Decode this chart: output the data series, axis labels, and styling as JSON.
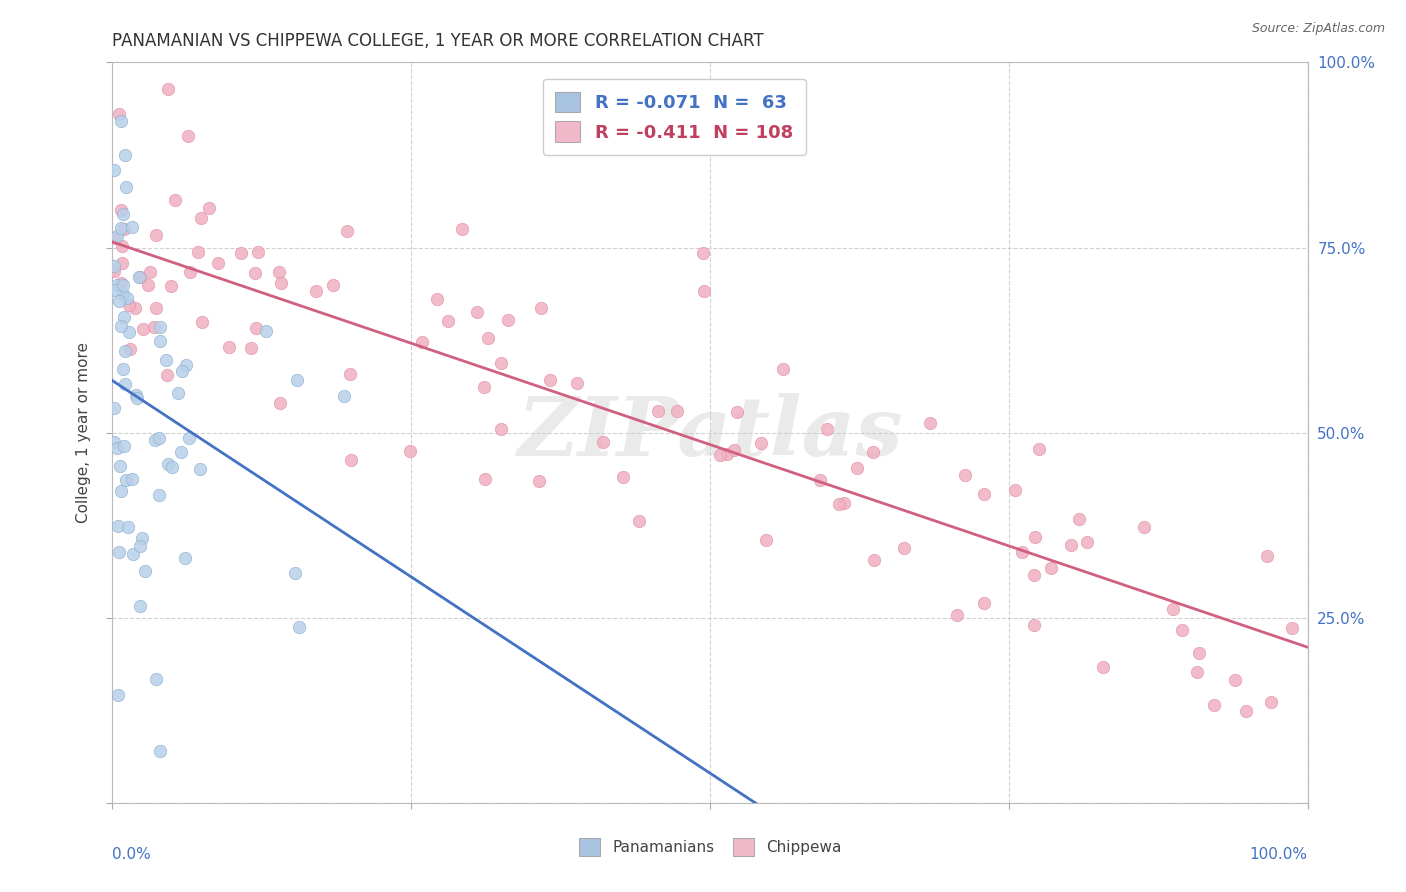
{
  "title": "PANAMANIAN VS CHIPPEWA COLLEGE, 1 YEAR OR MORE CORRELATION CHART",
  "source_text": "Source: ZipAtlas.com",
  "ylabel": "College, 1 year or more",
  "ylabel_right_ticks": [
    "25.0%",
    "50.0%",
    "75.0%",
    "100.0%"
  ],
  "ylabel_right_vals": [
    0.25,
    0.5,
    0.75,
    1.0
  ],
  "watermark": "ZIPatlas",
  "R1": -0.071,
  "N1": 63,
  "R2": -0.411,
  "N2": 108,
  "color_pan_fill": "#b8d0e8",
  "color_pan_edge": "#8ab0d0",
  "color_chip_fill": "#f0b0c0",
  "color_chip_edge": "#e090a8",
  "color_pan_line": "#4472c4",
  "color_chip_line": "#d06080",
  "color_pan_line_dark": "#4472c4",
  "color_chip_line_dark": "#c04060",
  "background_color": "#ffffff",
  "grid_color": "#cccccc",
  "legend_box_color_pan": "#a8c4e0",
  "legend_box_color_chip": "#f0b8c8",
  "legend_text_color_pan": "#4472c4",
  "legend_text_color_chip": "#c04060"
}
